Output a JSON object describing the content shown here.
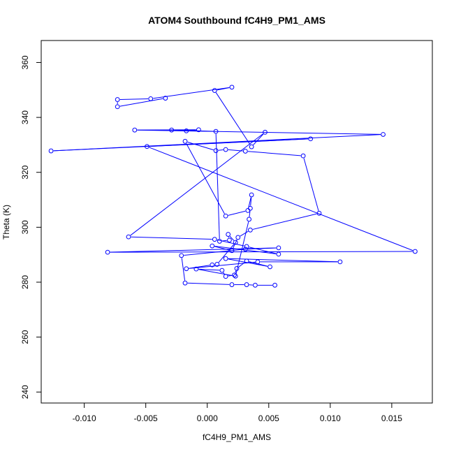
{
  "chart_data": {
    "type": "line",
    "title": "ATOM4 Southbound fC4H9_PM1_AMS",
    "xlabel": "fC4H9_PM1_AMS",
    "ylabel": "Theta (K)",
    "xlim": [
      -0.0135,
      0.0183
    ],
    "ylim": [
      236,
      368
    ],
    "xticks": [
      -0.01,
      -0.005,
      0.0,
      0.005,
      0.01,
      0.015
    ],
    "xtick_labels": [
      "-0.010",
      "-0.005",
      "0.000",
      "0.005",
      "0.010",
      "0.015"
    ],
    "yticks": [
      240,
      260,
      280,
      300,
      320,
      340,
      360
    ],
    "ytick_labels": [
      "240",
      "260",
      "280",
      "300",
      "320",
      "340",
      "360"
    ],
    "grid": false,
    "series": [
      {
        "color": "#0000ff",
        "marker": "open-circle",
        "points": [
          [
            0.0055,
            278.9
          ],
          [
            0.0039,
            278.9
          ],
          [
            0.0032,
            279.1
          ],
          [
            0.002,
            279.1
          ],
          [
            -0.0018,
            279.7
          ],
          [
            -0.0021,
            289.7
          ],
          [
            0.0031,
            292.0
          ],
          [
            0.0058,
            292.5
          ],
          [
            -0.0081,
            290.9
          ],
          [
            0.0169,
            291.2
          ],
          [
            -0.0049,
            329.4
          ],
          [
            0.0084,
            332.2
          ],
          [
            -0.0127,
            327.8
          ],
          [
            0.0143,
            333.8
          ],
          [
            -0.0059,
            335.4
          ],
          [
            -0.0007,
            335.5
          ],
          [
            -0.0017,
            335.1
          ],
          [
            -0.0029,
            335.4
          ],
          [
            0.0007,
            334.9
          ],
          [
            0.001,
            294.9
          ],
          [
            0.0018,
            295.3
          ],
          [
            0.0017,
            297.4
          ],
          [
            0.0023,
            294.5
          ],
          [
            0.0008,
            286.5
          ],
          [
            0.0004,
            286.3
          ],
          [
            -0.0017,
            284.9
          ],
          [
            0.0041,
            287.4
          ],
          [
            0.0108,
            287.4
          ],
          [
            0.0015,
            288.6
          ],
          [
            0.0051,
            285.6
          ],
          [
            0.0032,
            287.7
          ],
          [
            0.0024,
            285.0
          ],
          [
            0.0022,
            282.6
          ],
          [
            0.0015,
            282.1
          ],
          [
            0.0012,
            284.3
          ],
          [
            -0.0009,
            284.8
          ],
          [
            0.0023,
            282.2
          ],
          [
            0.0034,
            302.9
          ],
          [
            0.0035,
            306.9
          ],
          [
            0.0036,
            311.8
          ],
          [
            0.0033,
            306.1
          ],
          [
            0.0015,
            304.1
          ],
          [
            -0.0018,
            331.3
          ],
          [
            0.0007,
            327.9
          ],
          [
            0.0015,
            328.3
          ],
          [
            0.0031,
            327.7
          ],
          [
            0.0078,
            326.0
          ],
          [
            0.0091,
            305.1
          ],
          [
            0.0035,
            299.0
          ],
          [
            0.0025,
            296.3
          ],
          [
            0.002,
            291.5
          ],
          [
            0.0004,
            293.2
          ],
          [
            0.0058,
            290.2
          ],
          [
            0.0032,
            293.0
          ],
          [
            0.0006,
            295.6
          ],
          [
            -0.0064,
            296.5
          ],
          [
            0.0047,
            334.6
          ],
          [
            0.0036,
            329.3
          ],
          [
            0.0006,
            349.8
          ],
          [
            0.002,
            351.0
          ],
          [
            -0.0046,
            346.8
          ],
          [
            -0.0073,
            346.5
          ],
          [
            -0.0073,
            343.9
          ],
          [
            -0.0034,
            347.0
          ]
        ]
      }
    ]
  }
}
